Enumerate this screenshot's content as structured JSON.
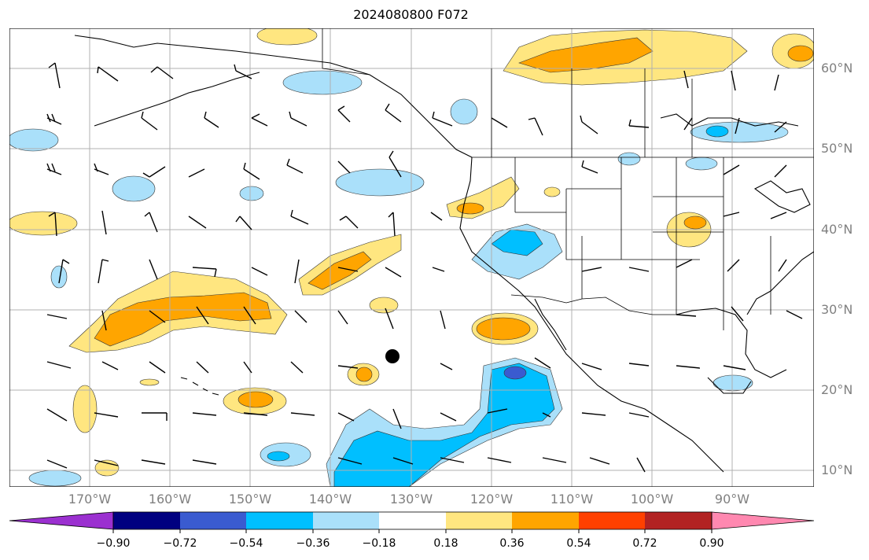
{
  "title": "2024080800 F072",
  "lat_labels": [
    "60°N",
    "50°N",
    "40°N",
    "30°N",
    "20°N",
    "10°N"
  ],
  "lon_labels": [
    "170°W",
    "160°W",
    "150°W",
    "140°W",
    "130°W",
    "120°W",
    "110°W",
    "100°W",
    "90°W"
  ],
  "colorbar": {
    "tick_labels": [
      "−0.90",
      "−0.72",
      "−0.54",
      "−0.36",
      "−0.18",
      "0.18",
      "0.36",
      "0.54",
      "0.72",
      "0.90"
    ],
    "colors": [
      "#9b30d0",
      "#000080",
      "#3a5bd0",
      "#00bfff",
      "#aae0fa",
      "#ffffff",
      "#ffe680",
      "#ffa500",
      "#ff4000",
      "#b22222",
      "#ff88b0"
    ]
  },
  "colors": {
    "light_blue": "#aae0fa",
    "blue": "#00bfff",
    "dark_blue": "#3a5bd0",
    "light_yellow": "#ffe680",
    "orange": "#ffa500",
    "gridline": "#b0b0b0",
    "label_gray": "#808080"
  }
}
